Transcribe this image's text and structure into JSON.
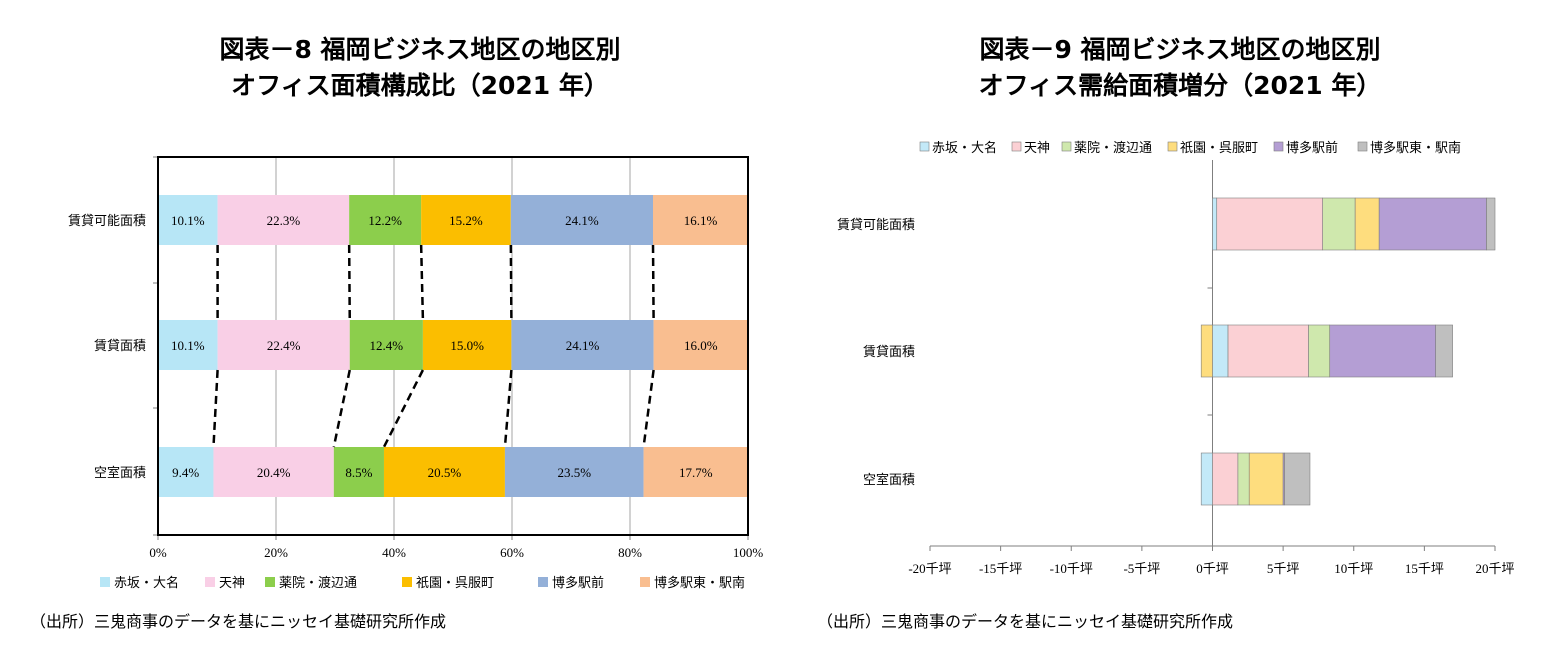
{
  "chart_data": [
    {
      "type": "bar",
      "orientation": "horizontal",
      "stacked": "percent",
      "title_line1": "図表－8 福岡ビジネス地区の地区別",
      "title_line2": "オフィス面積構成比（2021 年）",
      "categories": [
        "賃貸可能面積",
        "賃貸面積",
        "空室面積"
      ],
      "x_ticks": [
        "0%",
        "20%",
        "40%",
        "60%",
        "80%",
        "100%"
      ],
      "xlim": [
        0,
        100
      ],
      "grid": true,
      "legend_position": "bottom",
      "series": [
        {
          "name": "赤坂・大名",
          "color": "#b7e6f6",
          "values": [
            10.1,
            10.1,
            9.4
          ],
          "labels": [
            "10.1%",
            "10.1%",
            "9.4%"
          ]
        },
        {
          "name": "天神",
          "color": "#f9cfe6",
          "values": [
            22.3,
            22.4,
            20.4
          ],
          "labels": [
            "22.3%",
            "22.4%",
            "20.4%"
          ]
        },
        {
          "name": "薬院・渡辺通",
          "color": "#8cce4c",
          "values": [
            12.2,
            12.4,
            8.5
          ],
          "labels": [
            "12.2%",
            "12.4%",
            "8.5%"
          ]
        },
        {
          "name": "祇園・呉服町",
          "color": "#fbbe00",
          "values": [
            15.2,
            15.0,
            20.5
          ],
          "labels": [
            "15.2%",
            "15.0%",
            "20.5%"
          ]
        },
        {
          "name": "博多駅前",
          "color": "#94b0d8",
          "values": [
            24.1,
            24.1,
            23.5
          ],
          "labels": [
            "24.1%",
            "24.1%",
            "23.5%"
          ]
        },
        {
          "name": "博多駅東・駅南",
          "color": "#f9be90",
          "values": [
            16.1,
            16.0,
            17.7
          ],
          "labels": [
            "16.1%",
            "16.0%",
            "17.7%"
          ]
        }
      ],
      "source": "（出所）三鬼商事のデータを基にニッセイ基礎研究所作成"
    },
    {
      "type": "bar",
      "orientation": "horizontal",
      "stacked": true,
      "title_line1": "図表－9 福岡ビジネス地区の地区別",
      "title_line2": "オフィス需給面積増分（2021 年）",
      "categories": [
        "賃貸可能面積",
        "賃貸面積",
        "空室面積"
      ],
      "x_ticks": [
        "-20千坪",
        "-15千坪",
        "-10千坪",
        "-5千坪",
        "0千坪",
        "5千坪",
        "10千坪",
        "15千坪",
        "20千坪"
      ],
      "xlim": [
        -20,
        20
      ],
      "grid": false,
      "legend_position": "top",
      "series": [
        {
          "name": "赤坂・大名",
          "color": "#c3e9f8",
          "values": [
            0.3,
            1.1,
            -0.8
          ]
        },
        {
          "name": "天神",
          "color": "#fbd0d4",
          "values": [
            7.5,
            5.7,
            1.8
          ]
        },
        {
          "name": "薬院・渡辺通",
          "color": "#cfe8ad",
          "values": [
            2.3,
            1.5,
            0.8
          ]
        },
        {
          "name": "祇園・呉服町",
          "color": "#fedd7e",
          "values": [
            1.7,
            -0.8,
            2.4
          ]
        },
        {
          "name": "博多駅前",
          "color": "#b49ed4",
          "values": [
            7.6,
            7.5,
            0.1
          ]
        },
        {
          "name": "博多駅東・駅南",
          "color": "#bfbfbf",
          "values": [
            0.6,
            1.2,
            1.8
          ]
        }
      ],
      "source": "（出所）三鬼商事のデータを基にニッセイ基礎研究所作成"
    }
  ]
}
